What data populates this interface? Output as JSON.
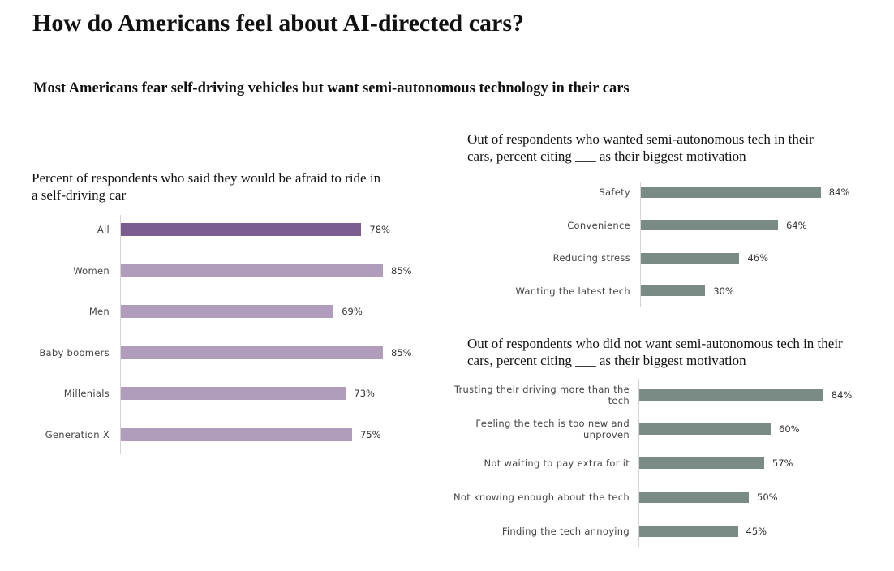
{
  "title": "How do Americans feel about AI-directed cars?",
  "subtitle": "Most Americans fear self-driving vehicles but want semi-autonomous technology in their cars",
  "chart_data": [
    {
      "type": "bar",
      "orientation": "horizontal",
      "title": "Percent of respondents who said they would be afraid to ride in a self-driving car",
      "categories": [
        "All",
        "Women",
        "Men",
        "Baby boomers",
        "Millenials",
        "Generation X"
      ],
      "values": [
        78,
        85,
        69,
        85,
        73,
        75
      ],
      "value_format": "percent",
      "colors": [
        "#7b5e8f",
        "#b09cbb",
        "#b09cbb",
        "#b09cbb",
        "#b09cbb",
        "#b09cbb"
      ],
      "grid": false
    },
    {
      "type": "bar",
      "orientation": "horizontal",
      "title": "Out of respondents who wanted semi-autonomous tech in their cars, percent citing ___ as their biggest motivation",
      "categories": [
        "Safety",
        "Convenience",
        "Reducing stress",
        "Wanting the latest tech"
      ],
      "values": [
        84,
        64,
        46,
        30
      ],
      "value_format": "percent",
      "colors": [
        "#7a8a84",
        "#7a8a84",
        "#7a8a84",
        "#7a8a84"
      ],
      "grid": false
    },
    {
      "type": "bar",
      "orientation": "horizontal",
      "title": "Out of respondents who did not want semi-autonomous tech in their cars, percent citing ___ as their biggest motivation",
      "categories": [
        "Trusting their driving more than the tech",
        "Feeling the tech is too new and unproven",
        "Not waiting to pay extra for it",
        "Not knowing enough about the tech",
        "Finding the tech annoying"
      ],
      "values": [
        84,
        60,
        57,
        50,
        45
      ],
      "value_format": "percent",
      "colors": [
        "#7a8a84",
        "#7a8a84",
        "#7a8a84",
        "#7a8a84",
        "#7a8a84"
      ],
      "grid": false
    }
  ]
}
